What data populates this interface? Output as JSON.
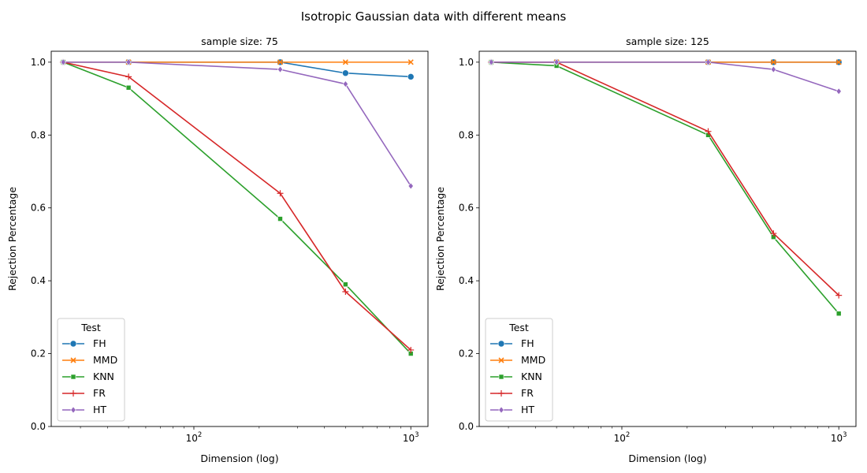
{
  "figure": {
    "suptitle": "Isotropic Gaussian data with different means"
  },
  "legend_title": "Test",
  "colors": {
    "FH": "#1f77b4",
    "MMD": "#ff7f0e",
    "KNN": "#2ca02c",
    "FR": "#d62728",
    "HT": "#9467bd"
  },
  "markers": {
    "FH": "circle",
    "MMD": "x",
    "KNN": "square",
    "FR": "plus",
    "HT": "diamond"
  },
  "chart_data": [
    {
      "type": "line",
      "title": "sample size: 75",
      "xlabel": "Dimension (log)",
      "ylabel": "Rejection Percentage",
      "xscale": "log",
      "xlim": [
        22,
        1200
      ],
      "ylim": [
        0,
        1.03
      ],
      "xticks": [
        100,
        1000
      ],
      "xtick_labels": [
        {
          "base": "10",
          "exp": "2"
        },
        {
          "base": "10",
          "exp": "3"
        }
      ],
      "yticks": [
        0.0,
        0.2,
        0.4,
        0.6,
        0.8,
        1.0
      ],
      "ytick_labels": [
        "0.0",
        "0.2",
        "0.4",
        "0.6",
        "0.8",
        "1.0"
      ],
      "legend": "lower-left",
      "grid": false,
      "x": [
        25,
        50,
        250,
        500,
        1000
      ],
      "series": [
        {
          "name": "FH",
          "values": [
            1.0,
            1.0,
            1.0,
            0.97,
            0.96
          ]
        },
        {
          "name": "MMD",
          "values": [
            1.0,
            1.0,
            1.0,
            1.0,
            1.0
          ]
        },
        {
          "name": "KNN",
          "values": [
            1.0,
            0.93,
            0.57,
            0.39,
            0.2
          ]
        },
        {
          "name": "FR",
          "values": [
            1.0,
            0.96,
            0.64,
            0.37,
            0.21
          ]
        },
        {
          "name": "HT",
          "values": [
            1.0,
            1.0,
            0.98,
            0.94,
            0.66
          ]
        }
      ]
    },
    {
      "type": "line",
      "title": "sample size: 125",
      "xlabel": "Dimension (log)",
      "ylabel": "Rejection Percentage",
      "xscale": "log",
      "xlim": [
        22,
        1200
      ],
      "ylim": [
        0,
        1.03
      ],
      "xticks": [
        100,
        1000
      ],
      "xtick_labels": [
        {
          "base": "10",
          "exp": "2"
        },
        {
          "base": "10",
          "exp": "3"
        }
      ],
      "yticks": [
        0.0,
        0.2,
        0.4,
        0.6,
        0.8,
        1.0
      ],
      "ytick_labels": [
        "0.0",
        "0.2",
        "0.4",
        "0.6",
        "0.8",
        "1.0"
      ],
      "legend": "lower-left",
      "grid": false,
      "x": [
        25,
        50,
        250,
        500,
        1000
      ],
      "series": [
        {
          "name": "FH",
          "values": [
            1.0,
            1.0,
            1.0,
            1.0,
            1.0
          ]
        },
        {
          "name": "MMD",
          "values": [
            1.0,
            1.0,
            1.0,
            1.0,
            1.0
          ]
        },
        {
          "name": "KNN",
          "values": [
            1.0,
            0.99,
            0.8,
            0.52,
            0.31
          ]
        },
        {
          "name": "FR",
          "values": [
            1.0,
            1.0,
            0.81,
            0.53,
            0.36
          ]
        },
        {
          "name": "HT",
          "values": [
            1.0,
            1.0,
            1.0,
            0.98,
            0.92
          ]
        }
      ]
    }
  ]
}
